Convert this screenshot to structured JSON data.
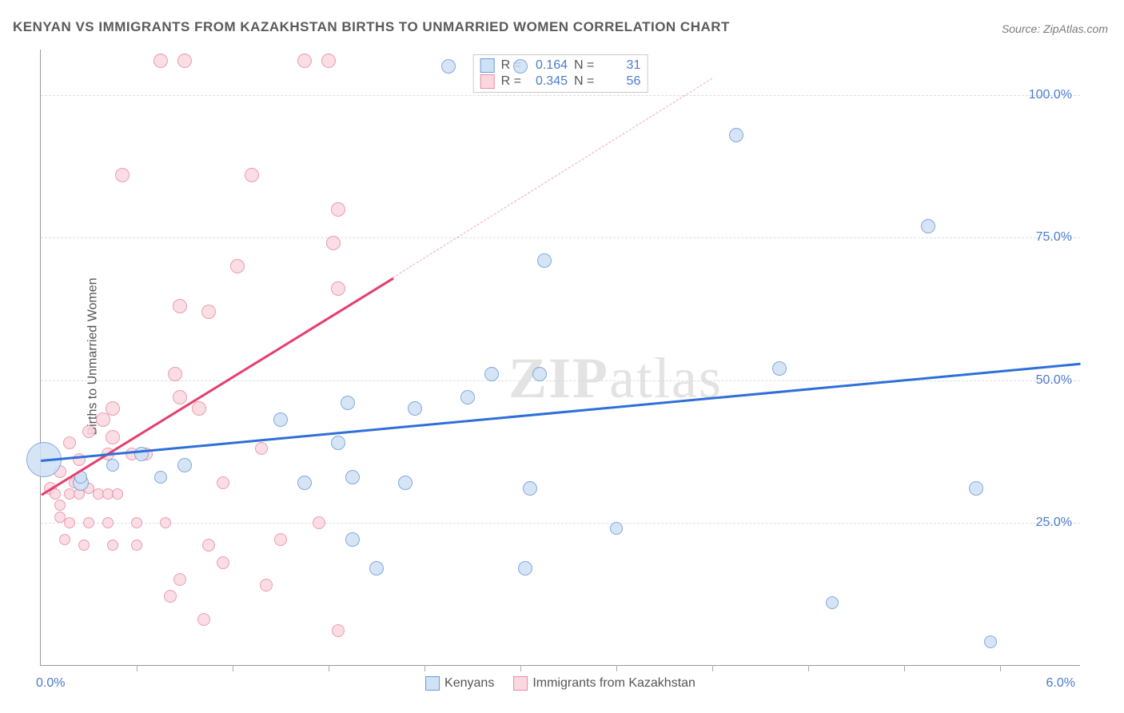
{
  "title": "KENYAN VS IMMIGRANTS FROM KAZAKHSTAN BIRTHS TO UNMARRIED WOMEN CORRELATION CHART",
  "source_label": "Source: ZipAtlas.com",
  "ylabel": "Births to Unmarried Women",
  "watermark_a": "ZIP",
  "watermark_b": "atlas",
  "chart": {
    "type": "scatter",
    "xlim": [
      0,
      6.5
    ],
    "ylim": [
      0,
      108
    ],
    "xtick_labels": {
      "left": "0.0%",
      "right": "6.0%"
    },
    "xtick_positions": [
      0.6,
      1.2,
      1.8,
      2.4,
      3.0,
      3.6,
      4.2,
      4.8,
      5.4,
      6.0
    ],
    "ytick_labels": [
      "25.0%",
      "50.0%",
      "75.0%",
      "100.0%"
    ],
    "ytick_positions": [
      25,
      50,
      75,
      100
    ],
    "grid_color": "#dddddd",
    "background_color": "#ffffff",
    "axis_color": "#999999"
  },
  "series": [
    {
      "name": "Kenyans",
      "color_fill": "#cfe1f5",
      "color_stroke": "#6a9bd8",
      "r_value": "0.164",
      "n_value": "31",
      "trend": {
        "x1": 0,
        "y1": 36,
        "x2": 6.5,
        "y2": 53,
        "color": "#2e6fd8",
        "dash": false,
        "width": 3
      },
      "points": [
        {
          "x": 0.02,
          "y": 36,
          "r": 22
        },
        {
          "x": 0.25,
          "y": 32,
          "r": 10
        },
        {
          "x": 0.25,
          "y": 33,
          "r": 8
        },
        {
          "x": 2.55,
          "y": 105,
          "r": 9
        },
        {
          "x": 3.0,
          "y": 105,
          "r": 9
        },
        {
          "x": 4.35,
          "y": 93,
          "r": 9
        },
        {
          "x": 5.55,
          "y": 77,
          "r": 9
        },
        {
          "x": 3.15,
          "y": 71,
          "r": 9
        },
        {
          "x": 2.82,
          "y": 51,
          "r": 9
        },
        {
          "x": 3.12,
          "y": 51,
          "r": 9
        },
        {
          "x": 4.62,
          "y": 52,
          "r": 9
        },
        {
          "x": 2.67,
          "y": 47,
          "r": 9
        },
        {
          "x": 2.34,
          "y": 45,
          "r": 9
        },
        {
          "x": 1.92,
          "y": 46,
          "r": 9
        },
        {
          "x": 1.5,
          "y": 43,
          "r": 9
        },
        {
          "x": 1.86,
          "y": 39,
          "r": 9
        },
        {
          "x": 0.63,
          "y": 37,
          "r": 9
        },
        {
          "x": 0.9,
          "y": 35,
          "r": 9
        },
        {
          "x": 1.65,
          "y": 32,
          "r": 9
        },
        {
          "x": 1.95,
          "y": 33,
          "r": 9
        },
        {
          "x": 2.28,
          "y": 32,
          "r": 9
        },
        {
          "x": 3.06,
          "y": 31,
          "r": 9
        },
        {
          "x": 5.85,
          "y": 31,
          "r": 9
        },
        {
          "x": 1.95,
          "y": 22,
          "r": 9
        },
        {
          "x": 2.1,
          "y": 17,
          "r": 9
        },
        {
          "x": 3.03,
          "y": 17,
          "r": 9
        },
        {
          "x": 3.6,
          "y": 24,
          "r": 8
        },
        {
          "x": 4.95,
          "y": 11,
          "r": 8
        },
        {
          "x": 5.94,
          "y": 4,
          "r": 8
        },
        {
          "x": 0.75,
          "y": 33,
          "r": 8
        },
        {
          "x": 0.45,
          "y": 35,
          "r": 8
        }
      ]
    },
    {
      "name": "Immigrants from Kazakhstan",
      "color_fill": "#fbd8e0",
      "color_stroke": "#e88ba3",
      "r_value": "0.345",
      "n_value": "56",
      "trend": {
        "x1": 0,
        "y1": 30,
        "x2": 2.2,
        "y2": 68,
        "color": "#e63e6d",
        "dash": false,
        "width": 3
      },
      "trend_ext": {
        "x1": 2.2,
        "y1": 68,
        "x2": 4.2,
        "y2": 103,
        "color": "#f0a8bb",
        "dash": true,
        "width": 1
      },
      "points": [
        {
          "x": 0.75,
          "y": 106,
          "r": 9
        },
        {
          "x": 0.9,
          "y": 106,
          "r": 9
        },
        {
          "x": 1.65,
          "y": 106,
          "r": 9
        },
        {
          "x": 1.8,
          "y": 106,
          "r": 9
        },
        {
          "x": 0.51,
          "y": 86,
          "r": 9
        },
        {
          "x": 1.32,
          "y": 86,
          "r": 9
        },
        {
          "x": 1.86,
          "y": 80,
          "r": 9
        },
        {
          "x": 1.83,
          "y": 74,
          "r": 9
        },
        {
          "x": 1.23,
          "y": 70,
          "r": 9
        },
        {
          "x": 1.86,
          "y": 66,
          "r": 9
        },
        {
          "x": 0.87,
          "y": 63,
          "r": 9
        },
        {
          "x": 1.05,
          "y": 62,
          "r": 9
        },
        {
          "x": 0.87,
          "y": 47,
          "r": 9
        },
        {
          "x": 0.84,
          "y": 51,
          "r": 9
        },
        {
          "x": 0.99,
          "y": 45,
          "r": 9
        },
        {
          "x": 0.45,
          "y": 45,
          "r": 9
        },
        {
          "x": 0.45,
          "y": 40,
          "r": 9
        },
        {
          "x": 0.39,
          "y": 43,
          "r": 9
        },
        {
          "x": 0.3,
          "y": 41,
          "r": 8
        },
        {
          "x": 0.18,
          "y": 39,
          "r": 8
        },
        {
          "x": 0.24,
          "y": 36,
          "r": 8
        },
        {
          "x": 0.42,
          "y": 37,
          "r": 8
        },
        {
          "x": 0.57,
          "y": 37,
          "r": 8
        },
        {
          "x": 0.66,
          "y": 37,
          "r": 8
        },
        {
          "x": 0.12,
          "y": 34,
          "r": 8
        },
        {
          "x": 0.06,
          "y": 31,
          "r": 8
        },
        {
          "x": 0.09,
          "y": 30,
          "r": 7
        },
        {
          "x": 0.12,
          "y": 28,
          "r": 7
        },
        {
          "x": 0.18,
          "y": 30,
          "r": 7
        },
        {
          "x": 0.21,
          "y": 32,
          "r": 7
        },
        {
          "x": 0.24,
          "y": 30,
          "r": 7
        },
        {
          "x": 0.3,
          "y": 31,
          "r": 7
        },
        {
          "x": 0.36,
          "y": 30,
          "r": 7
        },
        {
          "x": 0.42,
          "y": 30,
          "r": 7
        },
        {
          "x": 0.48,
          "y": 30,
          "r": 7
        },
        {
          "x": 0.12,
          "y": 26,
          "r": 7
        },
        {
          "x": 0.18,
          "y": 25,
          "r": 7
        },
        {
          "x": 0.3,
          "y": 25,
          "r": 7
        },
        {
          "x": 0.42,
          "y": 25,
          "r": 7
        },
        {
          "x": 0.6,
          "y": 25,
          "r": 7
        },
        {
          "x": 0.78,
          "y": 25,
          "r": 7
        },
        {
          "x": 0.15,
          "y": 22,
          "r": 7
        },
        {
          "x": 0.27,
          "y": 21,
          "r": 7
        },
        {
          "x": 0.45,
          "y": 21,
          "r": 7
        },
        {
          "x": 0.6,
          "y": 21,
          "r": 7
        },
        {
          "x": 0.87,
          "y": 15,
          "r": 8
        },
        {
          "x": 0.81,
          "y": 12,
          "r": 8
        },
        {
          "x": 1.02,
          "y": 8,
          "r": 8
        },
        {
          "x": 1.14,
          "y": 18,
          "r": 8
        },
        {
          "x": 1.05,
          "y": 21,
          "r": 8
        },
        {
          "x": 1.41,
          "y": 14,
          "r": 8
        },
        {
          "x": 1.5,
          "y": 22,
          "r": 8
        },
        {
          "x": 1.74,
          "y": 25,
          "r": 8
        },
        {
          "x": 1.86,
          "y": 6,
          "r": 8
        },
        {
          "x": 1.38,
          "y": 38,
          "r": 8
        },
        {
          "x": 1.14,
          "y": 32,
          "r": 8
        }
      ]
    }
  ],
  "stats_panel": {
    "r_label": "R =",
    "n_label": "N ="
  },
  "legend": {
    "label_a": "Kenyans",
    "label_b": "Immigrants from Kazakhstan"
  }
}
